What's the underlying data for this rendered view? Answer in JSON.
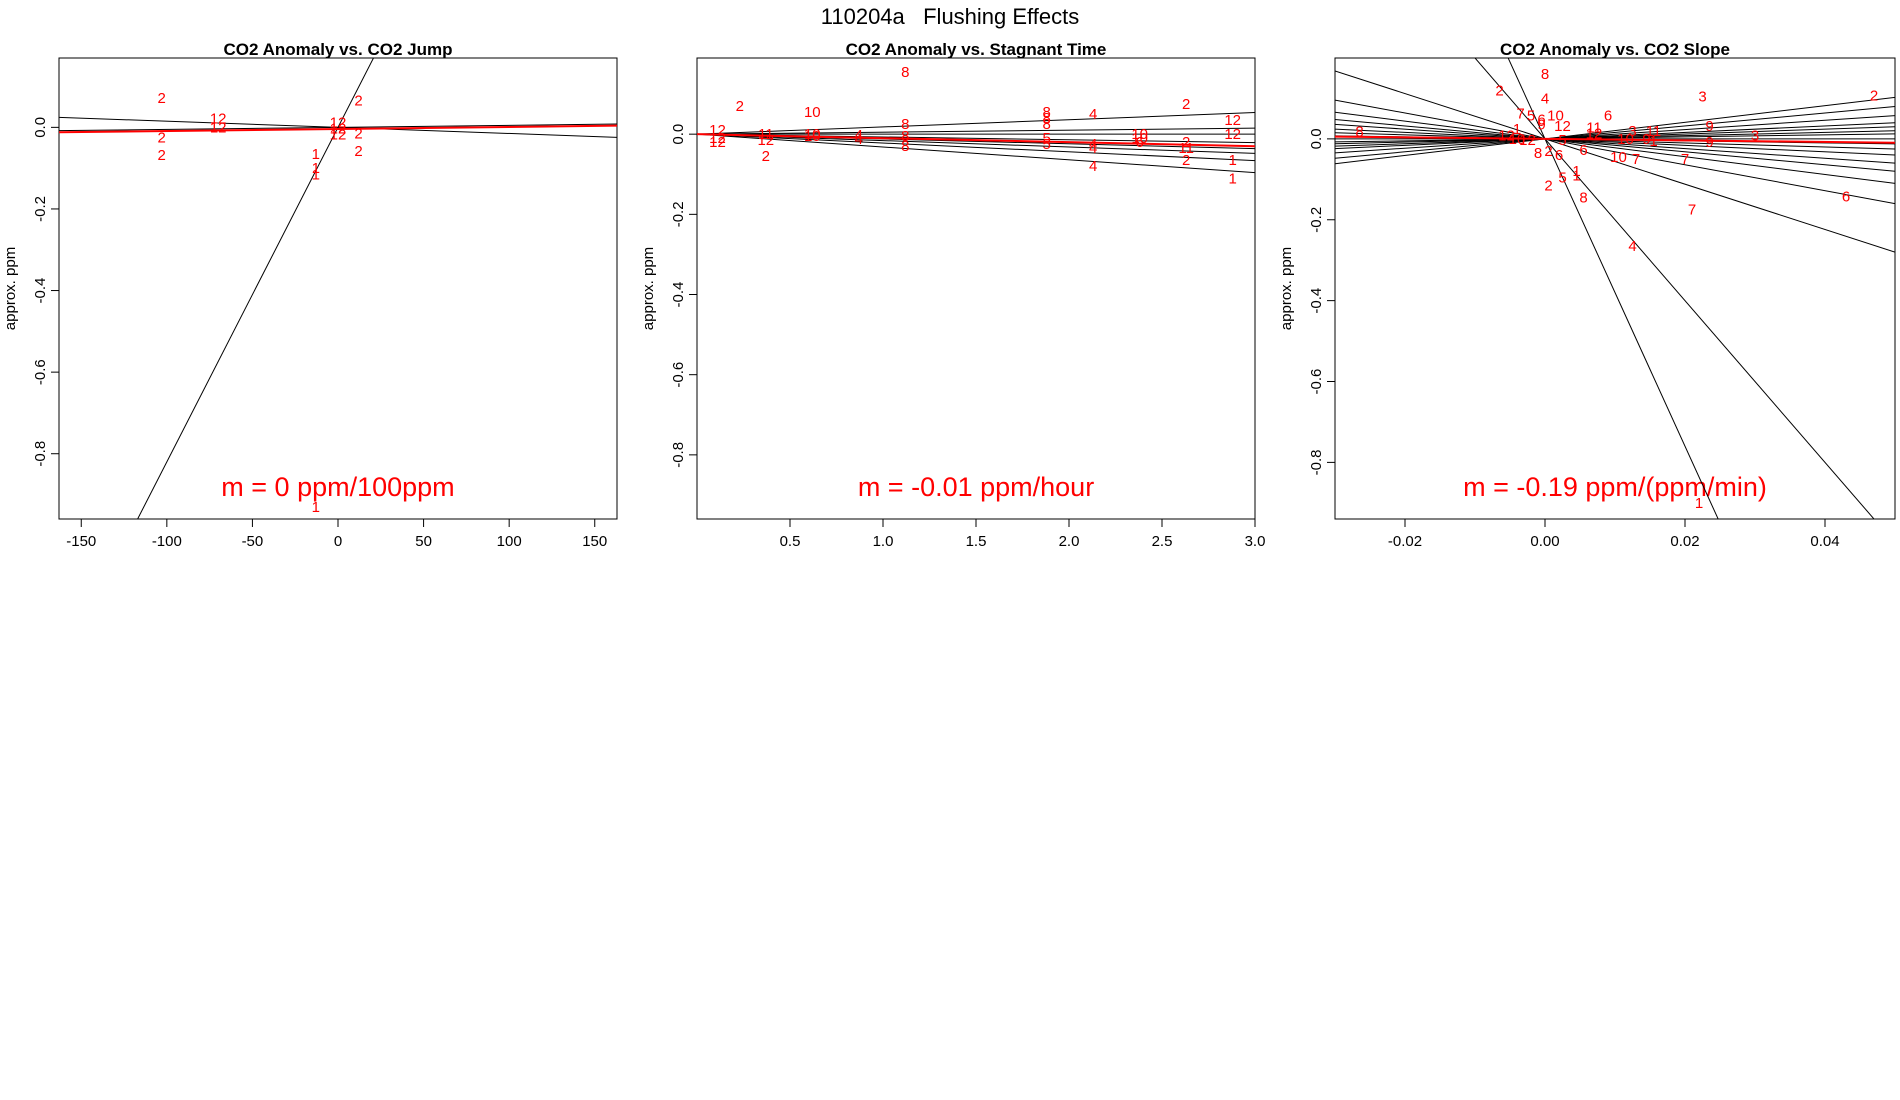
{
  "figure": {
    "sup_title": "110204a   Flushing Effects"
  },
  "colors": {
    "fit_line": "#ff0000",
    "group_line": "#000000",
    "points": "#ff0000"
  },
  "chart_data": [
    {
      "type": "scatter",
      "title": "CO2 Anomaly vs. CO2 Jump",
      "xlabel": "",
      "ylabel": "approx. ppm",
      "xlim": [
        -163,
        163
      ],
      "ylim": [
        -0.96,
        0.17
      ],
      "xticks": [
        -150,
        -100,
        -50,
        0,
        50,
        100,
        150
      ],
      "yticks": [
        0.0,
        -0.2,
        -0.4,
        -0.6,
        -0.8
      ],
      "annotation": "m = 0 ppm/100ppm",
      "fit_line": {
        "slope": 5e-05,
        "intercept": -0.004
      },
      "group_lines": [
        {
          "slope": 0.0082,
          "intercept": 0.0
        },
        {
          "slope": -0.00015,
          "intercept": 0.0
        },
        {
          "slope": 5e-05,
          "intercept": 0.0
        }
      ],
      "points": [
        {
          "label": "2",
          "x": -103,
          "y": 0.072
        },
        {
          "label": "2",
          "x": -103,
          "y": -0.025
        },
        {
          "label": "2",
          "x": -103,
          "y": -0.068
        },
        {
          "label": "12",
          "x": -70,
          "y": 0.022
        },
        {
          "label": "12",
          "x": -70,
          "y": 0.0
        },
        {
          "label": "1",
          "x": -13,
          "y": -0.065
        },
        {
          "label": "1",
          "x": -13,
          "y": -0.1
        },
        {
          "label": "1",
          "x": -13,
          "y": -0.115
        },
        {
          "label": "1",
          "x": -13,
          "y": -0.93
        },
        {
          "label": "12",
          "x": 0,
          "y": 0.012
        },
        {
          "label": "12",
          "x": 0,
          "y": -0.003
        },
        {
          "label": "12",
          "x": 0,
          "y": -0.018
        },
        {
          "label": "2",
          "x": 12,
          "y": 0.066
        },
        {
          "label": "2",
          "x": 12,
          "y": -0.015
        },
        {
          "label": "2",
          "x": 12,
          "y": -0.058
        }
      ]
    },
    {
      "type": "scatter",
      "title": "CO2 Anomaly vs. Stagnant Time",
      "xlabel": "",
      "ylabel": "approx. ppm",
      "xlim": [
        0.0,
        3.0
      ],
      "ylim": [
        -0.96,
        0.19
      ],
      "xticks": [
        0.5,
        1.0,
        1.5,
        2.0,
        2.5,
        3.0
      ],
      "yticks": [
        0.0,
        -0.2,
        -0.4,
        -0.6,
        -0.8
      ],
      "annotation": "m = -0.01 ppm/hour",
      "fit_line": {
        "slope": -0.01,
        "intercept": 0.0
      },
      "group_lines": [
        {
          "slope": 0.018,
          "intercept": 0.0
        },
        {
          "slope": 0.005,
          "intercept": 0.0
        },
        {
          "slope": 0.0,
          "intercept": 0.0
        },
        {
          "slope": -0.007,
          "intercept": 0.0
        },
        {
          "slope": -0.012,
          "intercept": 0.0
        },
        {
          "slope": -0.016,
          "intercept": 0.0
        },
        {
          "slope": -0.022,
          "intercept": 0.0
        },
        {
          "slope": -0.032,
          "intercept": 0.0
        }
      ],
      "points": [
        {
          "label": "2",
          "x": 0.23,
          "y": 0.07
        },
        {
          "label": "12",
          "x": 0.11,
          "y": 0.01
        },
        {
          "label": "12",
          "x": 0.11,
          "y": -0.01
        },
        {
          "label": "12",
          "x": 0.11,
          "y": -0.02
        },
        {
          "label": "11",
          "x": 0.37,
          "y": 0.0
        },
        {
          "label": "12",
          "x": 0.37,
          "y": -0.015
        },
        {
          "label": "2",
          "x": 0.37,
          "y": -0.055
        },
        {
          "label": "10",
          "x": 0.62,
          "y": 0.055
        },
        {
          "label": "10",
          "x": 0.62,
          "y": 0.0
        },
        {
          "label": "10",
          "x": 0.62,
          "y": -0.005
        },
        {
          "label": "4",
          "x": 0.87,
          "y": -0.002
        },
        {
          "label": "4",
          "x": 0.87,
          "y": -0.012
        },
        {
          "label": "8",
          "x": 1.12,
          "y": 0.155
        },
        {
          "label": "8",
          "x": 1.12,
          "y": 0.025
        },
        {
          "label": "8",
          "x": 1.12,
          "y": -0.005
        },
        {
          "label": "8",
          "x": 1.12,
          "y": -0.03
        },
        {
          "label": "8",
          "x": 1.88,
          "y": 0.055
        },
        {
          "label": "8",
          "x": 1.88,
          "y": 0.04
        },
        {
          "label": "8",
          "x": 1.88,
          "y": 0.025
        },
        {
          "label": "5",
          "x": 1.88,
          "y": -0.01
        },
        {
          "label": "5",
          "x": 1.88,
          "y": -0.025
        },
        {
          "label": "4",
          "x": 2.13,
          "y": 0.05
        },
        {
          "label": "4",
          "x": 2.13,
          "y": -0.025
        },
        {
          "label": "4",
          "x": 2.13,
          "y": -0.035
        },
        {
          "label": "4",
          "x": 2.13,
          "y": -0.08
        },
        {
          "label": "10",
          "x": 2.38,
          "y": 0.0
        },
        {
          "label": "10",
          "x": 2.38,
          "y": -0.01
        },
        {
          "label": "6",
          "x": 2.38,
          "y": -0.02
        },
        {
          "label": "2",
          "x": 2.63,
          "y": 0.075
        },
        {
          "label": "2",
          "x": 2.63,
          "y": -0.02
        },
        {
          "label": "11",
          "x": 2.63,
          "y": -0.035
        },
        {
          "label": "2",
          "x": 2.63,
          "y": -0.065
        },
        {
          "label": "12",
          "x": 2.88,
          "y": 0.035
        },
        {
          "label": "12",
          "x": 2.88,
          "y": 0.0
        },
        {
          "label": "1",
          "x": 2.88,
          "y": -0.065
        },
        {
          "label": "1",
          "x": 2.88,
          "y": -0.11
        }
      ]
    },
    {
      "type": "scatter",
      "title": "CO2 Anomaly vs. CO2 Slope",
      "xlabel": "",
      "ylabel": "approx. ppm",
      "xlim": [
        -0.03,
        0.05
      ],
      "ylim": [
        -0.94,
        0.2
      ],
      "xticks": [
        -0.02,
        0.0,
        0.02,
        0.04
      ],
      "yticks": [
        0.0,
        -0.2,
        -0.4,
        -0.6,
        -0.8
      ],
      "annotation": "m = -0.19 ppm/(ppm/min)",
      "fit_line": {
        "slope": -0.19,
        "intercept": 0.0
      },
      "group_lines": [
        {
          "slope": -38.0,
          "intercept": 0.0
        },
        {
          "slope": -20.0,
          "intercept": 0.0
        },
        {
          "slope": -5.6,
          "intercept": 0.0
        },
        {
          "slope": -3.2,
          "intercept": 0.0
        },
        {
          "slope": -2.2,
          "intercept": 0.0
        },
        {
          "slope": -1.6,
          "intercept": 0.0
        },
        {
          "slope": -1.2,
          "intercept": 0.0
        },
        {
          "slope": -0.8,
          "intercept": 0.0
        },
        {
          "slope": -0.5,
          "intercept": 0.0
        },
        {
          "slope": -0.25,
          "intercept": 0.0
        },
        {
          "slope": 0.0,
          "intercept": 0.0
        },
        {
          "slope": 0.25,
          "intercept": 0.0
        },
        {
          "slope": 0.4,
          "intercept": 0.0
        },
        {
          "slope": 0.6,
          "intercept": 0.0
        },
        {
          "slope": 0.8,
          "intercept": 0.0
        },
        {
          "slope": 1.15,
          "intercept": 0.0
        },
        {
          "slope": 1.6,
          "intercept": 0.0
        },
        {
          "slope": 2.05,
          "intercept": 0.0
        }
      ],
      "points": [
        {
          "label": "8",
          "x": -0.0265,
          "y": 0.018
        },
        {
          "label": "2",
          "x": -0.0065,
          "y": 0.12
        },
        {
          "label": "8",
          "x": 0.0,
          "y": 0.16
        },
        {
          "label": "4",
          "x": 0.0,
          "y": 0.1
        },
        {
          "label": "7",
          "x": -0.0035,
          "y": 0.063
        },
        {
          "label": "5",
          "x": -0.002,
          "y": 0.058
        },
        {
          "label": "6",
          "x": -0.0005,
          "y": 0.048
        },
        {
          "label": "9",
          "x": -0.0005,
          "y": 0.035
        },
        {
          "label": "10",
          "x": 0.0015,
          "y": 0.058
        },
        {
          "label": "1",
          "x": -0.004,
          "y": 0.025
        },
        {
          "label": "12",
          "x": -0.0055,
          "y": 0.008
        },
        {
          "label": "10",
          "x": -0.004,
          "y": 0.0
        },
        {
          "label": "12",
          "x": -0.0025,
          "y": -0.003
        },
        {
          "label": "6",
          "x": 0.009,
          "y": 0.058
        },
        {
          "label": "12",
          "x": 0.0025,
          "y": 0.032
        },
        {
          "label": "11",
          "x": 0.007,
          "y": 0.028
        },
        {
          "label": "12",
          "x": 0.007,
          "y": 0.013
        },
        {
          "label": "5",
          "x": 0.0025,
          "y": -0.003
        },
        {
          "label": "6",
          "x": 0.0055,
          "y": -0.028
        },
        {
          "label": "8",
          "x": -0.001,
          "y": -0.035
        },
        {
          "label": "2",
          "x": 0.0005,
          "y": -0.03
        },
        {
          "label": "2",
          "x": 0.0005,
          "y": -0.115
        },
        {
          "label": "5",
          "x": 0.0025,
          "y": -0.095
        },
        {
          "label": "6",
          "x": 0.002,
          "y": -0.04
        },
        {
          "label": "1",
          "x": 0.0045,
          "y": -0.08
        },
        {
          "label": "1",
          "x": 0.0045,
          "y": -0.09
        },
        {
          "label": "8",
          "x": 0.0055,
          "y": -0.145
        },
        {
          "label": "4",
          "x": 0.0125,
          "y": -0.265
        },
        {
          "label": "3",
          "x": 0.0125,
          "y": 0.02
        },
        {
          "label": "10",
          "x": 0.0115,
          "y": 0.0
        },
        {
          "label": "11",
          "x": 0.0155,
          "y": 0.02
        },
        {
          "label": "9",
          "x": 0.0145,
          "y": 0.0
        },
        {
          "label": "1",
          "x": 0.0155,
          "y": -0.005
        },
        {
          "label": "10",
          "x": 0.0105,
          "y": -0.045
        },
        {
          "label": "7",
          "x": 0.013,
          "y": -0.05
        },
        {
          "label": "7",
          "x": 0.02,
          "y": -0.05
        },
        {
          "label": "7",
          "x": 0.021,
          "y": -0.175
        },
        {
          "label": "1",
          "x": 0.022,
          "y": -0.9
        },
        {
          "label": "3",
          "x": 0.0225,
          "y": 0.105
        },
        {
          "label": "9",
          "x": 0.0235,
          "y": 0.032
        },
        {
          "label": "9",
          "x": 0.0235,
          "y": -0.008
        },
        {
          "label": "3",
          "x": 0.03,
          "y": 0.008
        },
        {
          "label": "2",
          "x": 0.047,
          "y": 0.107
        },
        {
          "label": "6",
          "x": 0.043,
          "y": -0.142
        }
      ]
    }
  ]
}
